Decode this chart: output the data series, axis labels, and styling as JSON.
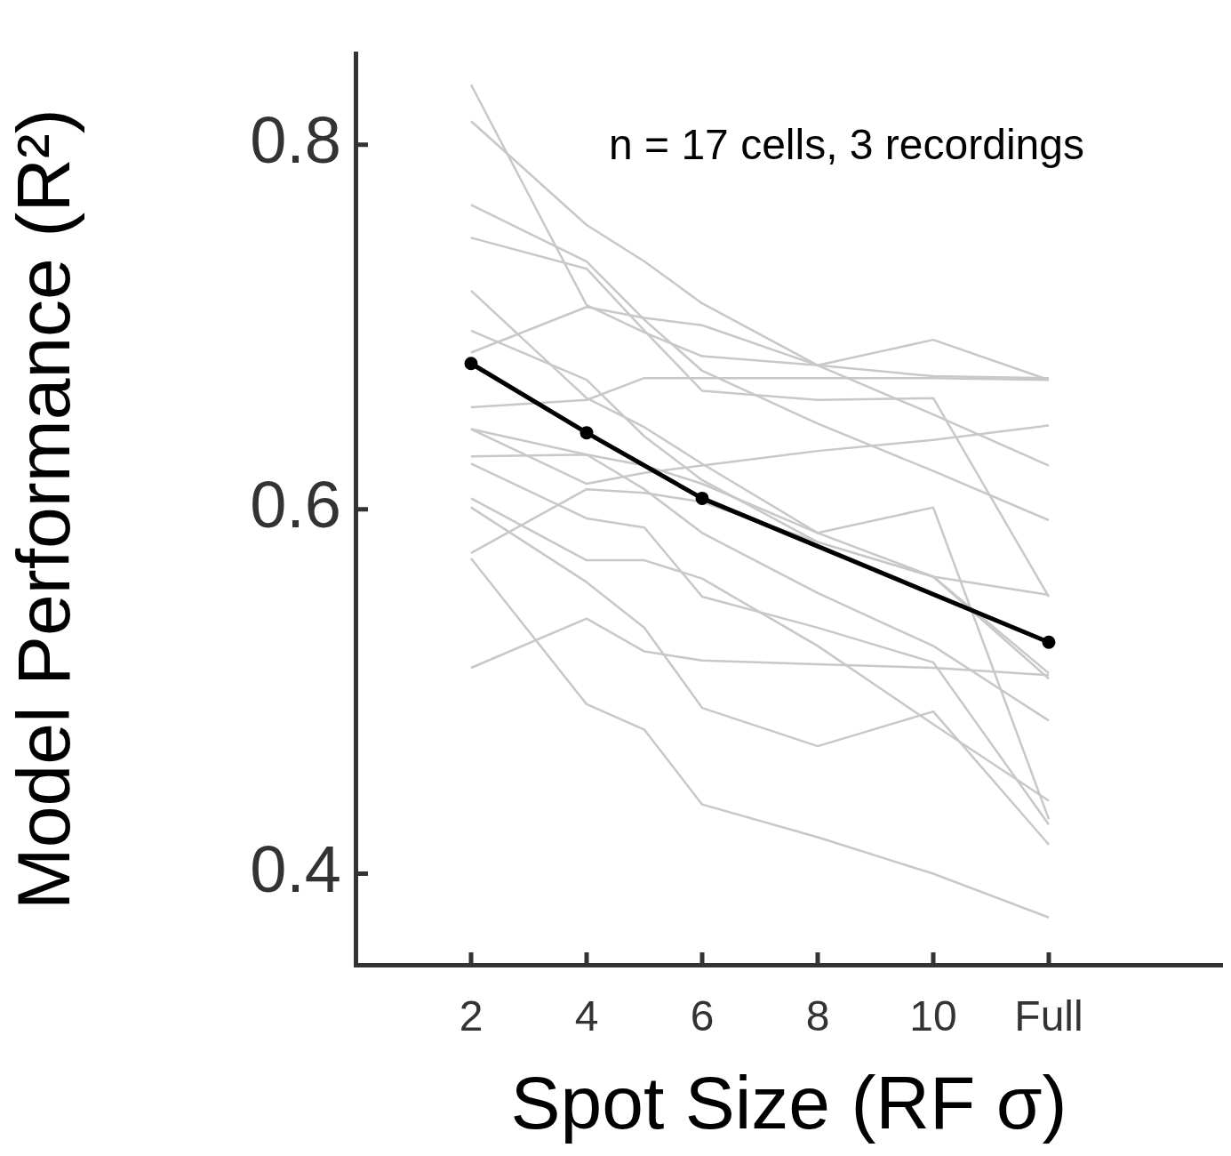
{
  "chart_data": {
    "type": "line",
    "xlabel": "Spot Size (RF σ)",
    "ylabel": "Model Performance (R²)",
    "annotations": [
      "n = 17 cells, 3 recordings"
    ],
    "xlim": [
      0,
      15
    ],
    "ylim": [
      0.35,
      0.85
    ],
    "xticks": [
      2,
      4,
      6,
      8,
      10,
      {
        "value": 12,
        "label": "Full"
      }
    ],
    "yticks": [
      0.4,
      0.6,
      0.8
    ],
    "grid": false,
    "legend": false,
    "series": [
      {
        "color": "#c8c8c8",
        "marker": "none",
        "x": [
          2,
          4,
          5,
          6,
          8,
          10,
          12
        ],
        "values": [
          0.833,
          0.712,
          0.697,
          0.684,
          0.679,
          0.673,
          0.672
        ]
      },
      {
        "color": "#c8c8c8",
        "marker": "none",
        "x": [
          2,
          4,
          5,
          6,
          8,
          10,
          12
        ],
        "values": [
          0.813,
          0.756,
          0.736,
          0.713,
          0.679,
          0.652,
          0.624
        ]
      },
      {
        "color": "#c8c8c8",
        "marker": "none",
        "x": [
          2,
          4,
          5,
          6,
          8,
          10,
          12
        ],
        "values": [
          0.767,
          0.736,
          0.704,
          0.676,
          0.647,
          0.621,
          0.594
        ]
      },
      {
        "color": "#c8c8c8",
        "marker": "none",
        "x": [
          2,
          4,
          5,
          6,
          8,
          10,
          12
        ],
        "values": [
          0.749,
          0.732,
          0.698,
          0.665,
          0.66,
          0.661,
          0.552
        ]
      },
      {
        "color": "#c8c8c8",
        "marker": "none",
        "x": [
          2,
          4,
          5,
          6,
          8,
          10,
          12
        ],
        "values": [
          0.72,
          0.661,
          0.645,
          0.625,
          0.587,
          0.601,
          0.43
        ]
      },
      {
        "color": "#c8c8c8",
        "marker": "none",
        "x": [
          2,
          4,
          5,
          6,
          8,
          10,
          12
        ],
        "values": [
          0.698,
          0.671,
          0.64,
          0.616,
          0.582,
          0.563,
          0.507
        ]
      },
      {
        "color": "#c8c8c8",
        "marker": "none",
        "x": [
          2,
          4,
          5,
          6,
          8,
          10,
          12
        ],
        "values": [
          0.686,
          0.711,
          0.705,
          0.701,
          0.679,
          0.693,
          0.671
        ]
      },
      {
        "color": "#c8c8c8",
        "marker": "none",
        "x": [
          2,
          4,
          5,
          6,
          8,
          10,
          12
        ],
        "values": [
          0.656,
          0.66,
          0.672,
          0.672,
          0.672,
          0.672,
          0.671
        ]
      },
      {
        "color": "#c8c8c8",
        "marker": "none",
        "x": [
          2,
          4,
          5,
          6,
          8,
          10,
          12
        ],
        "values": [
          0.644,
          0.614,
          0.62,
          0.624,
          0.632,
          0.638,
          0.646
        ]
      },
      {
        "color": "#c8c8c8",
        "marker": "none",
        "x": [
          2,
          4,
          5,
          6,
          8,
          10,
          12
        ],
        "values": [
          0.644,
          0.63,
          0.611,
          0.587,
          0.554,
          0.525,
          0.484
        ]
      },
      {
        "color": "#c8c8c8",
        "marker": "none",
        "x": [
          2,
          4,
          5,
          6,
          8,
          10,
          12
        ],
        "values": [
          0.629,
          0.63,
          0.624,
          0.614,
          0.587,
          0.563,
          0.51
        ]
      },
      {
        "color": "#c8c8c8",
        "marker": "none",
        "x": [
          2,
          4,
          5,
          6,
          8,
          10,
          12
        ],
        "values": [
          0.625,
          0.595,
          0.59,
          0.552,
          0.535,
          0.516,
          0.427
        ]
      },
      {
        "color": "#c8c8c8",
        "marker": "none",
        "x": [
          2,
          4,
          5,
          6,
          8,
          10,
          12
        ],
        "values": [
          0.606,
          0.572,
          0.572,
          0.562,
          0.525,
          0.482,
          0.44
        ]
      },
      {
        "color": "#c8c8c8",
        "marker": "none",
        "x": [
          2,
          4,
          5,
          6,
          8,
          10,
          12
        ],
        "values": [
          0.576,
          0.611,
          0.609,
          0.604,
          0.582,
          0.563,
          0.553
        ]
      },
      {
        "color": "#c8c8c8",
        "marker": "none",
        "x": [
          2,
          4,
          5,
          6,
          8,
          10,
          12
        ],
        "values": [
          0.573,
          0.493,
          0.479,
          0.438,
          0.42,
          0.4,
          0.376
        ]
      },
      {
        "color": "#c8c8c8",
        "marker": "none",
        "x": [
          2,
          4,
          5,
          6,
          8,
          10,
          12
        ],
        "values": [
          0.513,
          0.54,
          0.522,
          0.517,
          0.515,
          0.513,
          0.509
        ]
      },
      {
        "color": "#c8c8c8",
        "marker": "none",
        "x": [
          2,
          4,
          5,
          6,
          8,
          10,
          12
        ],
        "values": [
          0.601,
          0.56,
          0.535,
          0.491,
          0.47,
          0.489,
          0.416
        ]
      },
      {
        "color": "#000000",
        "marker": "circle",
        "x": [
          2,
          4,
          6,
          12
        ],
        "values": [
          0.68,
          0.642,
          0.606,
          0.527
        ]
      }
    ]
  }
}
